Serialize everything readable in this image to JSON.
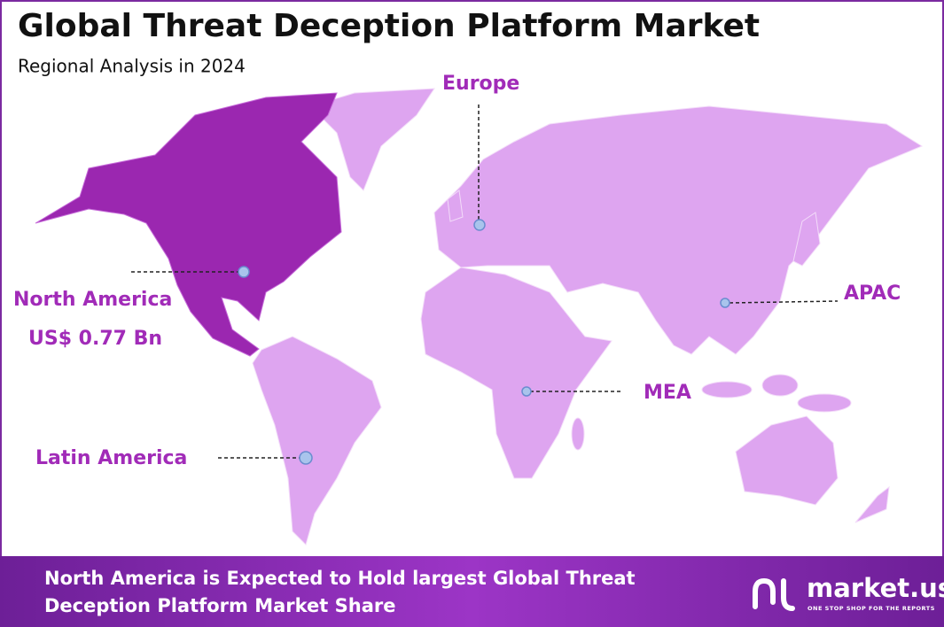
{
  "header": {
    "title": "Global Threat Deception Platform Market",
    "subtitle": "Regional Analysis in 2024"
  },
  "regions": [
    {
      "label": "North America",
      "value": "US$ 0.77 Bn"
    },
    {
      "label": "Europe"
    },
    {
      "label": "APAC"
    },
    {
      "label": "MEA"
    },
    {
      "label": "Latin America"
    }
  ],
  "footer": {
    "text_line1": "North America is Expected to Hold largest Global Threat",
    "text_line2": "Deception Platform Market Share"
  },
  "logo": {
    "name": "market.us",
    "tagline": "ONE STOP SHOP FOR THE REPORTS"
  }
}
